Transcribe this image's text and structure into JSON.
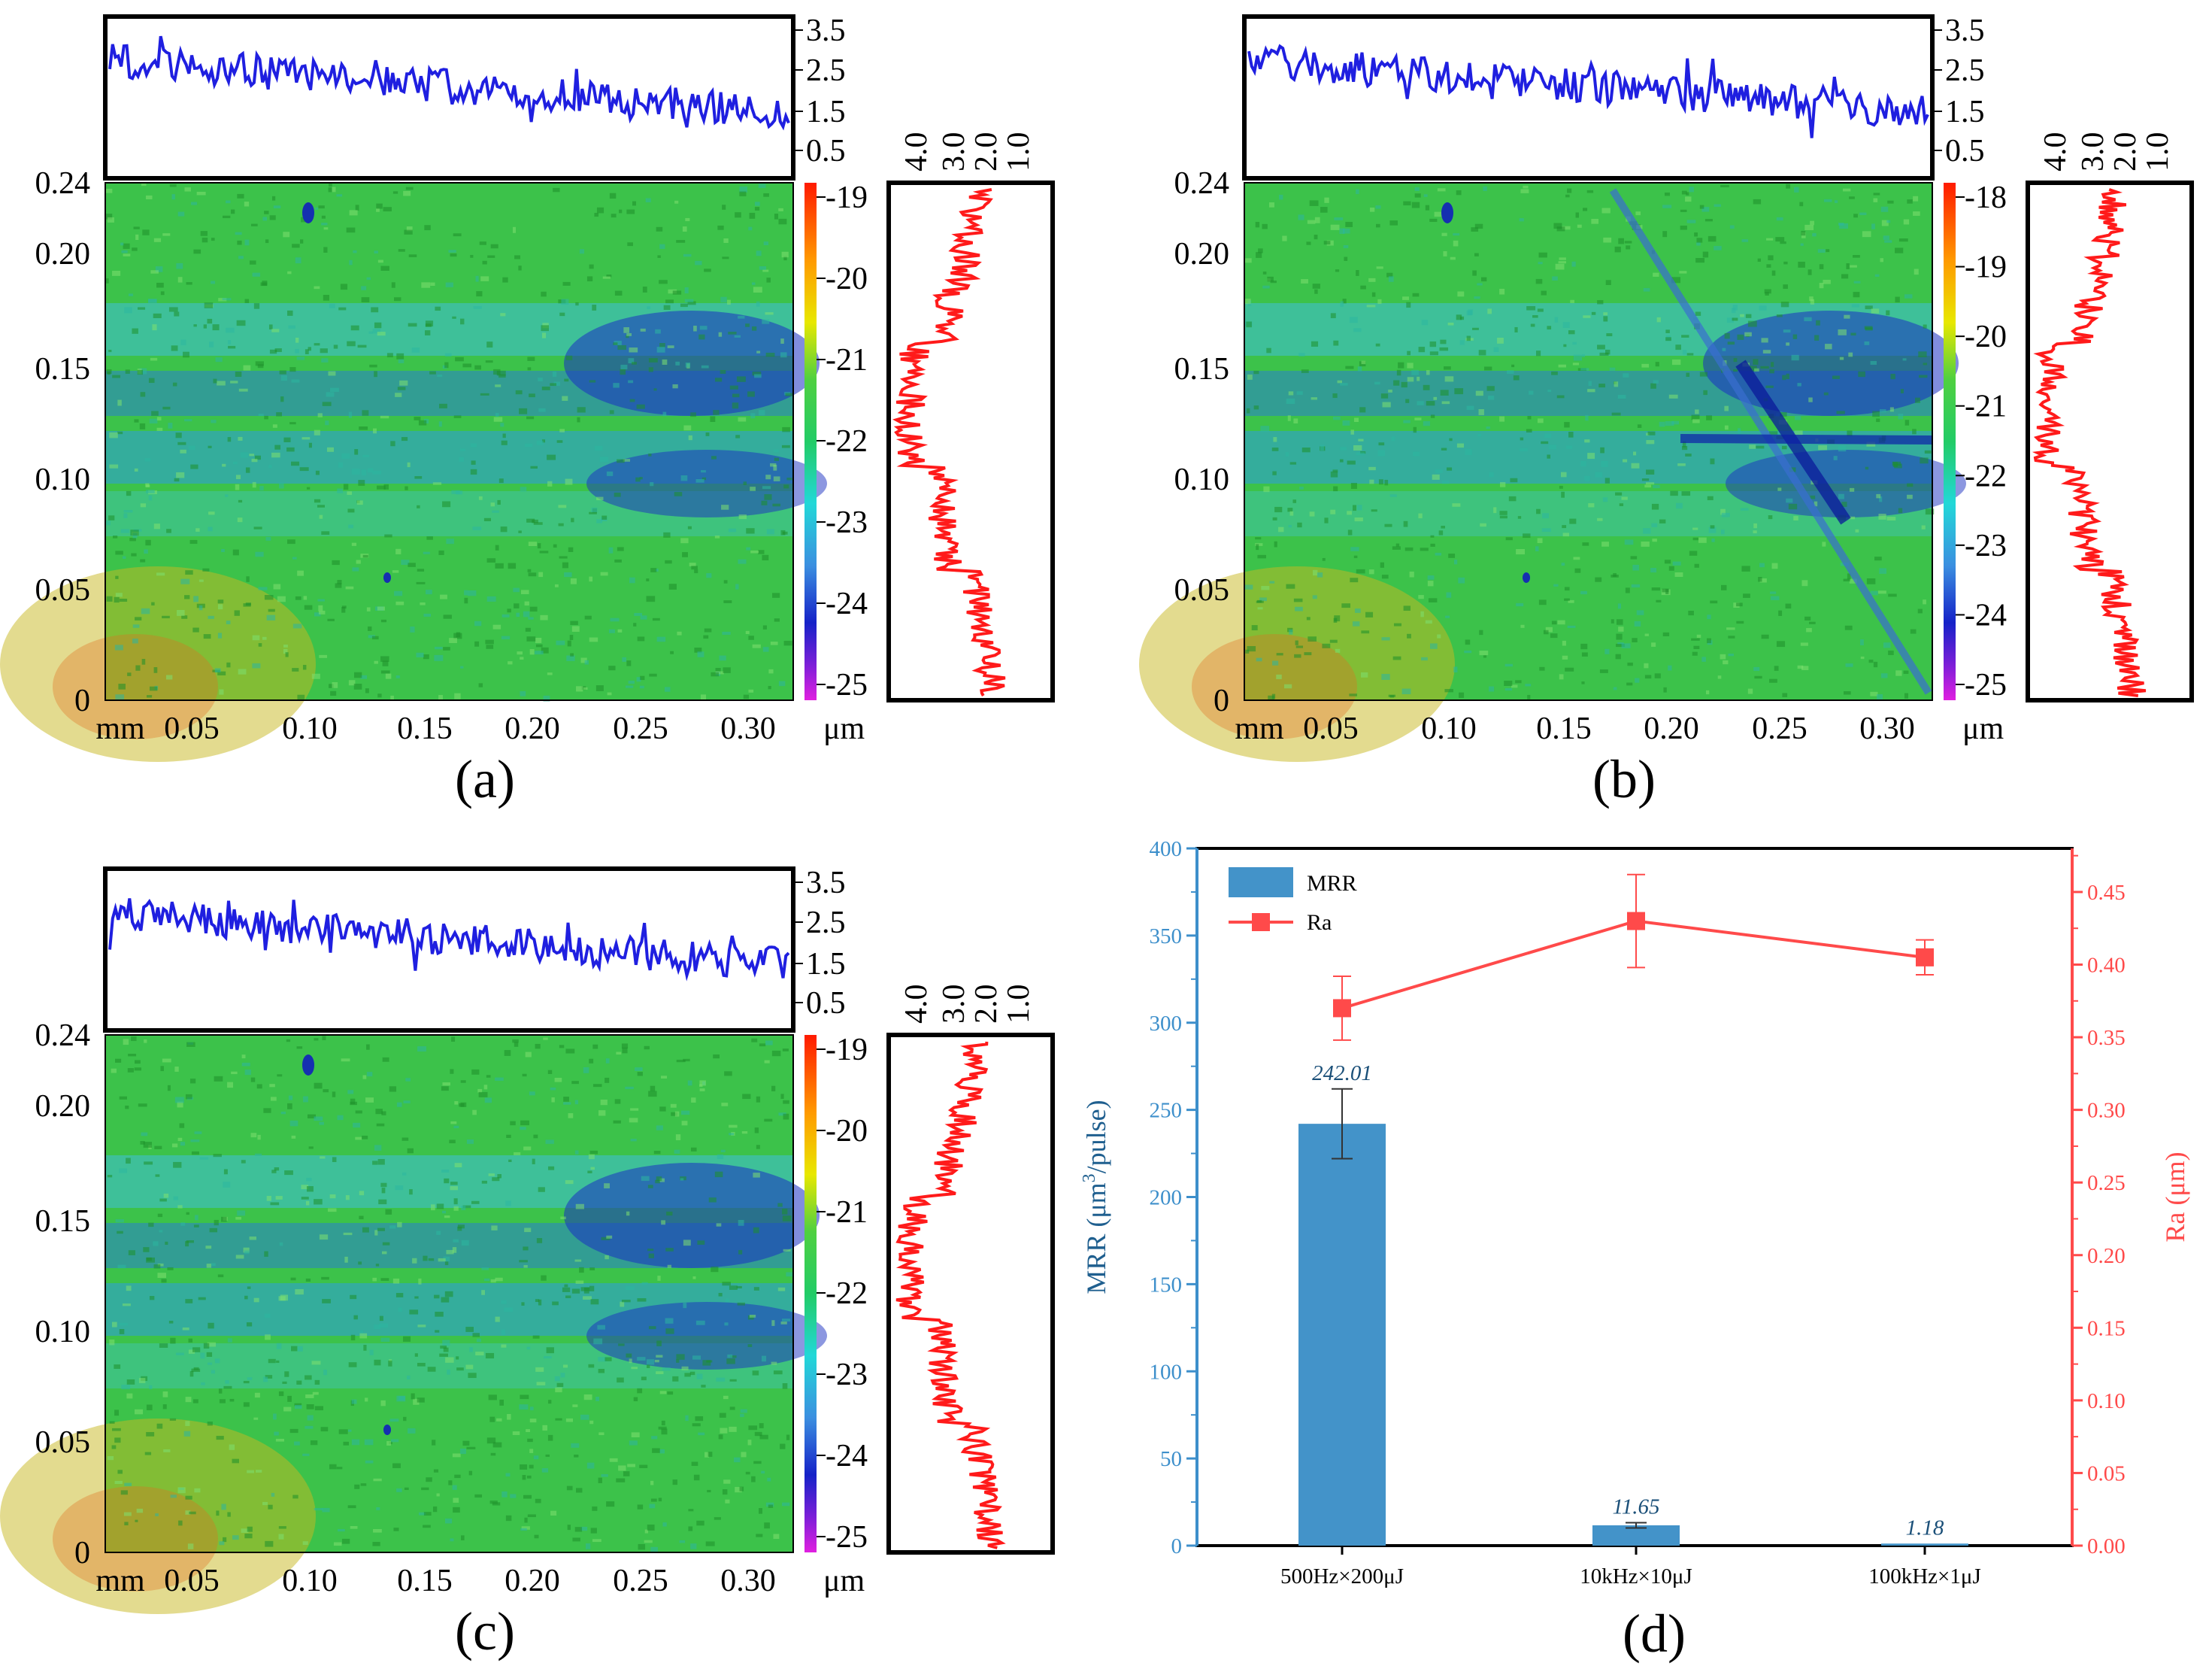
{
  "figure": {
    "panels": [
      {
        "id": "a",
        "caption": "(a)",
        "map_y_ticks": [
          "0.24",
          "0.20",
          "0.15",
          "0.10",
          "0.05",
          "0"
        ],
        "map_x_ticks": [
          "mm",
          "0.05",
          "0.10",
          "0.15",
          "0.20",
          "0.25",
          "0.30"
        ],
        "colorbar_ticks": [
          "-19",
          "-20",
          "-21",
          "-22",
          "-23",
          "-24",
          "-25"
        ],
        "colorbar_unit": "μm",
        "top_profile_ticks": [
          "3.5",
          "2.5",
          "1.5",
          "0.5"
        ],
        "side_profile_ticks": [
          "4.0",
          "3.0",
          "2.0",
          "1.0"
        ]
      },
      {
        "id": "b",
        "caption": "(b)",
        "map_y_ticks": [
          "0.24",
          "0.20",
          "0.15",
          "0.10",
          "0.05",
          "0"
        ],
        "map_x_ticks": [
          "mm",
          "0.05",
          "0.10",
          "0.15",
          "0.20",
          "0.25",
          "0.30"
        ],
        "colorbar_ticks": [
          "-18",
          "-19",
          "-20",
          "-21",
          "-22",
          "-23",
          "-24",
          "-25"
        ],
        "colorbar_unit": "μm",
        "top_profile_ticks": [
          "3.5",
          "2.5",
          "1.5",
          "0.5"
        ],
        "side_profile_ticks": [
          "4.0",
          "3.0",
          "2.0",
          "1.0"
        ]
      },
      {
        "id": "c",
        "caption": "(c)",
        "map_y_ticks": [
          "0.24",
          "0.20",
          "0.15",
          "0.10",
          "0.05",
          "0"
        ],
        "map_x_ticks": [
          "mm",
          "0.05",
          "0.10",
          "0.15",
          "0.20",
          "0.25",
          "0.30"
        ],
        "colorbar_ticks": [
          "-19",
          "-20",
          "-21",
          "-22",
          "-23",
          "-24",
          "-25"
        ],
        "colorbar_unit": "μm",
        "top_profile_ticks": [
          "3.5",
          "2.5",
          "1.5",
          "0.5"
        ],
        "side_profile_ticks": [
          "4.0",
          "3.0",
          "2.0",
          "1.0"
        ]
      }
    ],
    "profile_colors": {
      "top": "#1f1fe0",
      "side": "#ff1a1a"
    }
  },
  "chart_data": {
    "type": "bar",
    "caption": "(d)",
    "categories": [
      "500Hz×200μJ",
      "10kHz×10μJ",
      "100kHz×1μJ"
    ],
    "series": [
      {
        "name": "MRR",
        "kind": "bar",
        "axis": "left",
        "values": [
          242.01,
          11.65,
          1.18
        ],
        "value_labels": [
          "242.01",
          "11.65",
          "1.18"
        ],
        "errors": [
          20,
          1.5,
          0
        ],
        "color": "#4393c9"
      },
      {
        "name": "Ra",
        "kind": "line",
        "axis": "right",
        "values": [
          0.37,
          0.43,
          0.405
        ],
        "errors": [
          0.022,
          0.032,
          0.012
        ],
        "color": "#ff4a4a"
      }
    ],
    "ylabel_left_parts": [
      "MRR (μm",
      "3",
      "/pulse)"
    ],
    "ylabel_right": "Ra (μm)",
    "ylim_left": [
      0,
      400
    ],
    "ylim_right": [
      0,
      0.48
    ],
    "left_ticks": [
      0,
      50,
      100,
      150,
      200,
      250,
      300,
      350,
      400
    ],
    "right_ticks": [
      "0.00",
      "0.05",
      "0.10",
      "0.15",
      "0.20",
      "0.25",
      "0.30",
      "0.35",
      "0.40",
      "0.45"
    ],
    "left_axis_color": "#3d8fcb",
    "right_axis_color": "#ff4a4a",
    "legend": [
      "MRR",
      "Ra"
    ],
    "legend_position": "top-left"
  }
}
